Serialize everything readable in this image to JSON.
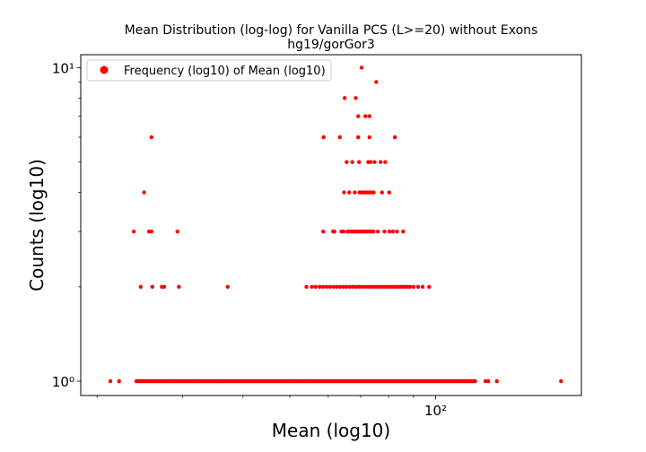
{
  "figure": {
    "title_line1": "Mean Distribution (log-log) for Vanilla PCS (L>=20) without Exons",
    "title_line2": "hg19/gorGor3"
  },
  "chart_data": {
    "type": "scatter",
    "title": "Mean Distribution (log-log) for Vanilla PCS (L>=20) without Exons\nhg19/gorGor3",
    "xlabel": "Mean (log10)",
    "ylabel": "Counts (log10)",
    "x_scale": "log",
    "y_scale": "log",
    "xlim": [
      18.5,
      200
    ],
    "ylim": [
      0.9,
      11
    ],
    "x_major_ticks": [
      {
        "value": 100,
        "label": "10²"
      }
    ],
    "y_major_ticks": [
      {
        "value": 1,
        "label": "10⁰"
      },
      {
        "value": 10,
        "label": "10¹"
      }
    ],
    "grid": false,
    "legend": {
      "placement": "top-left",
      "entries": [
        "Frequency (log10) of Mean (log10)"
      ]
    },
    "marker_color": "#ff0000",
    "series": [
      {
        "name": "Frequency (log10) of Mean (log10)",
        "segments": [
          {
            "y": 1,
            "x_from": 24.1,
            "x_to": 120.7
          }
        ],
        "points": [
          [
            21.3,
            1
          ],
          [
            22.2,
            1
          ],
          [
            126.7,
            1
          ],
          [
            128.4,
            1
          ],
          [
            133.8,
            1
          ],
          [
            181.5,
            1
          ],
          [
            24.6,
            2
          ],
          [
            26.0,
            2
          ],
          [
            27.2,
            2
          ],
          [
            27.5,
            2
          ],
          [
            29.5,
            2
          ],
          [
            37.2,
            2
          ],
          [
            54.1,
            2
          ],
          [
            55.5,
            2
          ],
          [
            56.5,
            2
          ],
          [
            57.6,
            2
          ],
          [
            58.5,
            2
          ],
          [
            59.5,
            2
          ],
          [
            60.5,
            2
          ],
          [
            61.5,
            2
          ],
          [
            62.5,
            2
          ],
          [
            63.5,
            2
          ],
          [
            64.5,
            2
          ],
          [
            65.5,
            2
          ],
          [
            66.5,
            2
          ],
          [
            67.5,
            2
          ],
          [
            68.5,
            2
          ],
          [
            69.5,
            2
          ],
          [
            70.5,
            2
          ],
          [
            71.5,
            2
          ],
          [
            72.5,
            2
          ],
          [
            73.5,
            2
          ],
          [
            74.5,
            2
          ],
          [
            75.5,
            2
          ],
          [
            76.5,
            2
          ],
          [
            77.5,
            2
          ],
          [
            78.5,
            2
          ],
          [
            79.5,
            2
          ],
          [
            80.5,
            2
          ],
          [
            81.5,
            2
          ],
          [
            82.5,
            2
          ],
          [
            83.5,
            2
          ],
          [
            84.5,
            2
          ],
          [
            85.5,
            2
          ],
          [
            86.5,
            2
          ],
          [
            87.5,
            2
          ],
          [
            88.5,
            2
          ],
          [
            90.0,
            2
          ],
          [
            92.0,
            2
          ],
          [
            94.0,
            2
          ],
          [
            97.0,
            2
          ],
          [
            23.8,
            3
          ],
          [
            25.6,
            3
          ],
          [
            25.9,
            3
          ],
          [
            29.3,
            3
          ],
          [
            58.6,
            3
          ],
          [
            61.4,
            3
          ],
          [
            61.8,
            3
          ],
          [
            63.9,
            3
          ],
          [
            64.6,
            3
          ],
          [
            65.8,
            3
          ],
          [
            66.3,
            3
          ],
          [
            67.1,
            3
          ],
          [
            67.8,
            3
          ],
          [
            68.4,
            3
          ],
          [
            69.0,
            3
          ],
          [
            69.6,
            3
          ],
          [
            70.2,
            3
          ],
          [
            70.8,
            3
          ],
          [
            71.4,
            3
          ],
          [
            72.0,
            3
          ],
          [
            72.6,
            3
          ],
          [
            73.2,
            3
          ],
          [
            73.8,
            3
          ],
          [
            74.4,
            3
          ],
          [
            76.0,
            3
          ],
          [
            78.4,
            3
          ],
          [
            80.3,
            3
          ],
          [
            81.6,
            3
          ],
          [
            83.2,
            3
          ],
          [
            85.7,
            3
          ],
          [
            25.0,
            4
          ],
          [
            64.7,
            4
          ],
          [
            66.3,
            4
          ],
          [
            68.1,
            4
          ],
          [
            69.6,
            4
          ],
          [
            70.2,
            4
          ],
          [
            71.0,
            4
          ],
          [
            71.7,
            4
          ],
          [
            72.4,
            4
          ],
          [
            73.1,
            4
          ],
          [
            73.8,
            4
          ],
          [
            74.5,
            4
          ],
          [
            77.5,
            4
          ],
          [
            80.2,
            4
          ],
          [
            65.5,
            5
          ],
          [
            67.3,
            5
          ],
          [
            69.5,
            5
          ],
          [
            72.6,
            5
          ],
          [
            73.4,
            5
          ],
          [
            74.8,
            5
          ],
          [
            77.0,
            5
          ],
          [
            78.7,
            5
          ],
          [
            25.9,
            6
          ],
          [
            58.7,
            6
          ],
          [
            63.4,
            6
          ],
          [
            69.2,
            6
          ],
          [
            73.0,
            6
          ],
          [
            82.4,
            6
          ],
          [
            69.2,
            7
          ],
          [
            71.6,
            7
          ],
          [
            73.0,
            7
          ],
          [
            64.9,
            8
          ],
          [
            68.4,
            8
          ],
          [
            75.4,
            9
          ],
          [
            70.3,
            10
          ]
        ]
      }
    ]
  }
}
